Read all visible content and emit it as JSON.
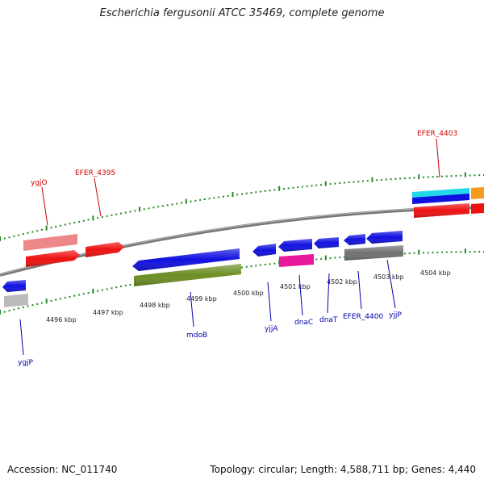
{
  "title": "Escherichia fergusonii ATCC 35469, complete genome",
  "footer": {
    "accession": "Accession: NC_011740",
    "topology": "Topology: circular; Length: 4,588,711 bp; Genes: 4,440"
  },
  "ticks": [
    "4496 kbp",
    "4497 kbp",
    "4498 kbp",
    "4499 kbp",
    "4500 kbp",
    "4501 kbp",
    "4502 kbp",
    "4503 kbp",
    "4504 kbp"
  ],
  "labels": {
    "ygjO": "ygjO",
    "efer4395": "EFER_4395",
    "efer4403": "EFER_4403",
    "ygjP": "ygjP",
    "mdoB": "mdoB",
    "yjjA": "yjjA",
    "dnaC": "dnaC",
    "dnaT": "dnaT",
    "efer4400": "EFER_4400",
    "yjjP": "yjjP"
  },
  "colors": {
    "top_label": "#cc0000",
    "bottom_label": "#0000aa",
    "dots": "#228822",
    "backbone": "#777777",
    "gene_blue": "#1010e0",
    "gene_red": "#ee1111",
    "gene_pink": "#ee8888",
    "gene_olive": "#6b8e23",
    "gene_magenta": "#e8189a",
    "gene_gray": "#707070",
    "gene_lightgray": "#bbbbbb",
    "gene_cyan": "#22d8e8",
    "gene_orange": "#f59a1a"
  }
}
